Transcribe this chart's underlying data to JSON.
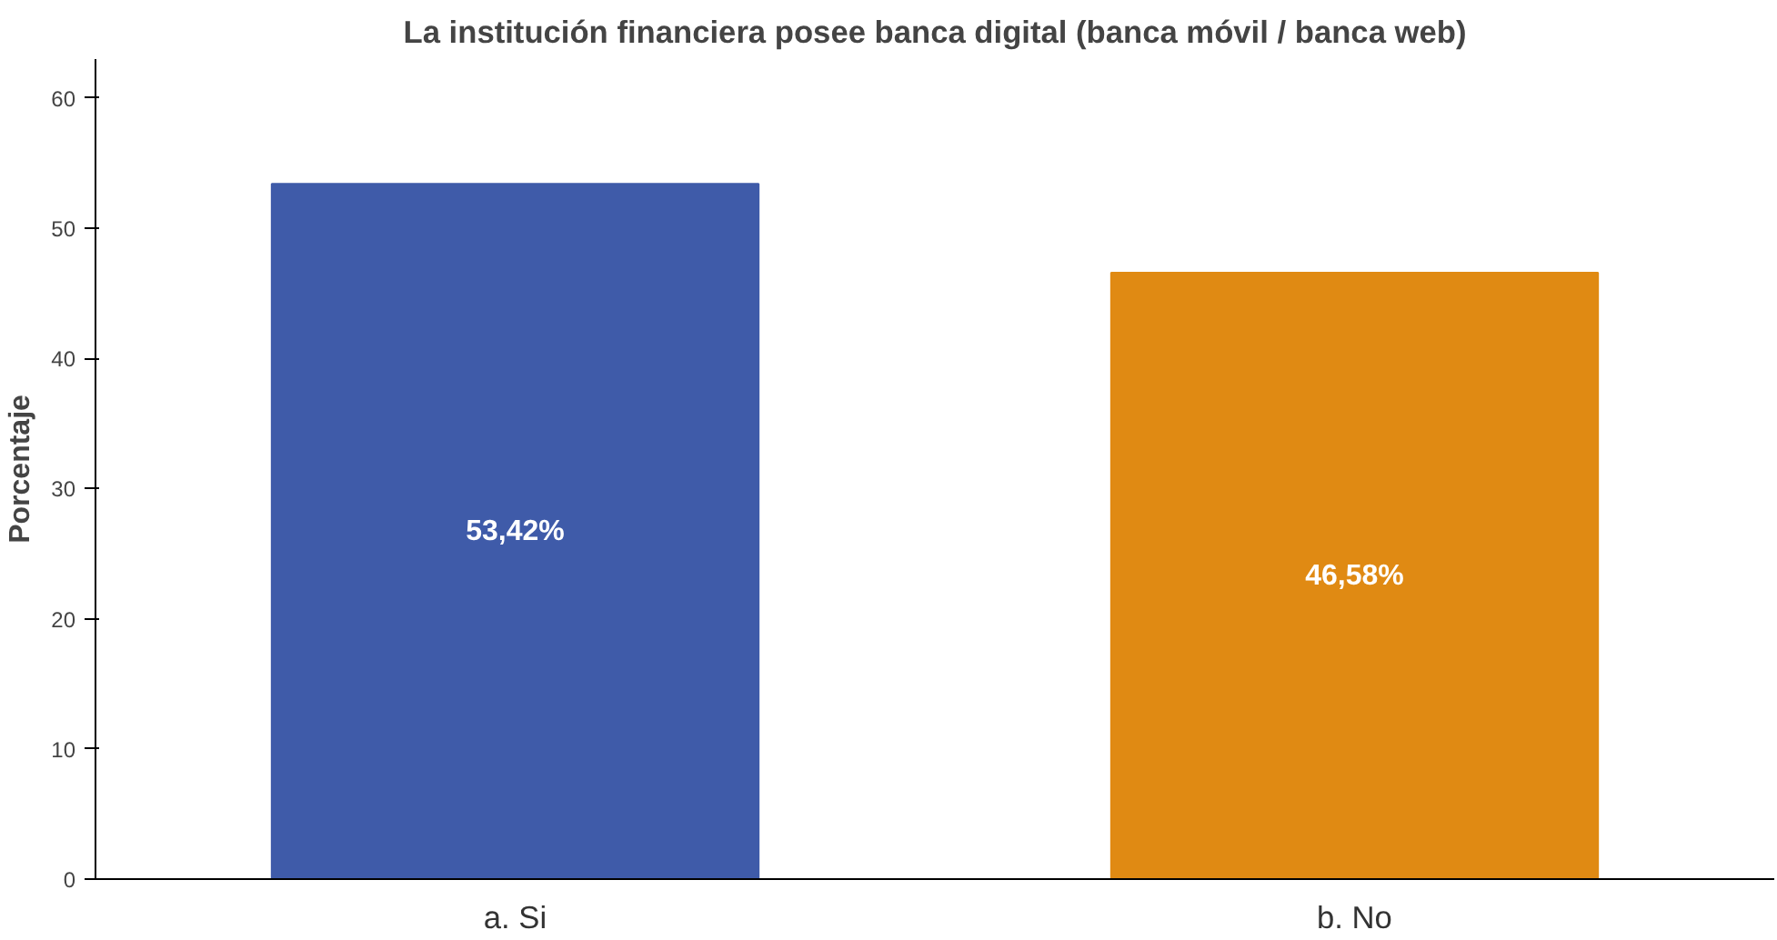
{
  "chart_data": {
    "type": "bar",
    "title": "La institución financiera posee banca digital (banca móvil / banca web)",
    "ylabel": "Porcentaje",
    "categories": [
      "a. Si",
      "b. No"
    ],
    "values": [
      53.42,
      46.58
    ],
    "colors": [
      "#3f5ba9",
      "#e08a13"
    ],
    "value_labels": [
      "53,42%",
      "46,58%"
    ],
    "ylim": [
      0,
      63
    ],
    "yticks": [
      0,
      10,
      20,
      30,
      40,
      50,
      60
    ],
    "grid": false
  }
}
